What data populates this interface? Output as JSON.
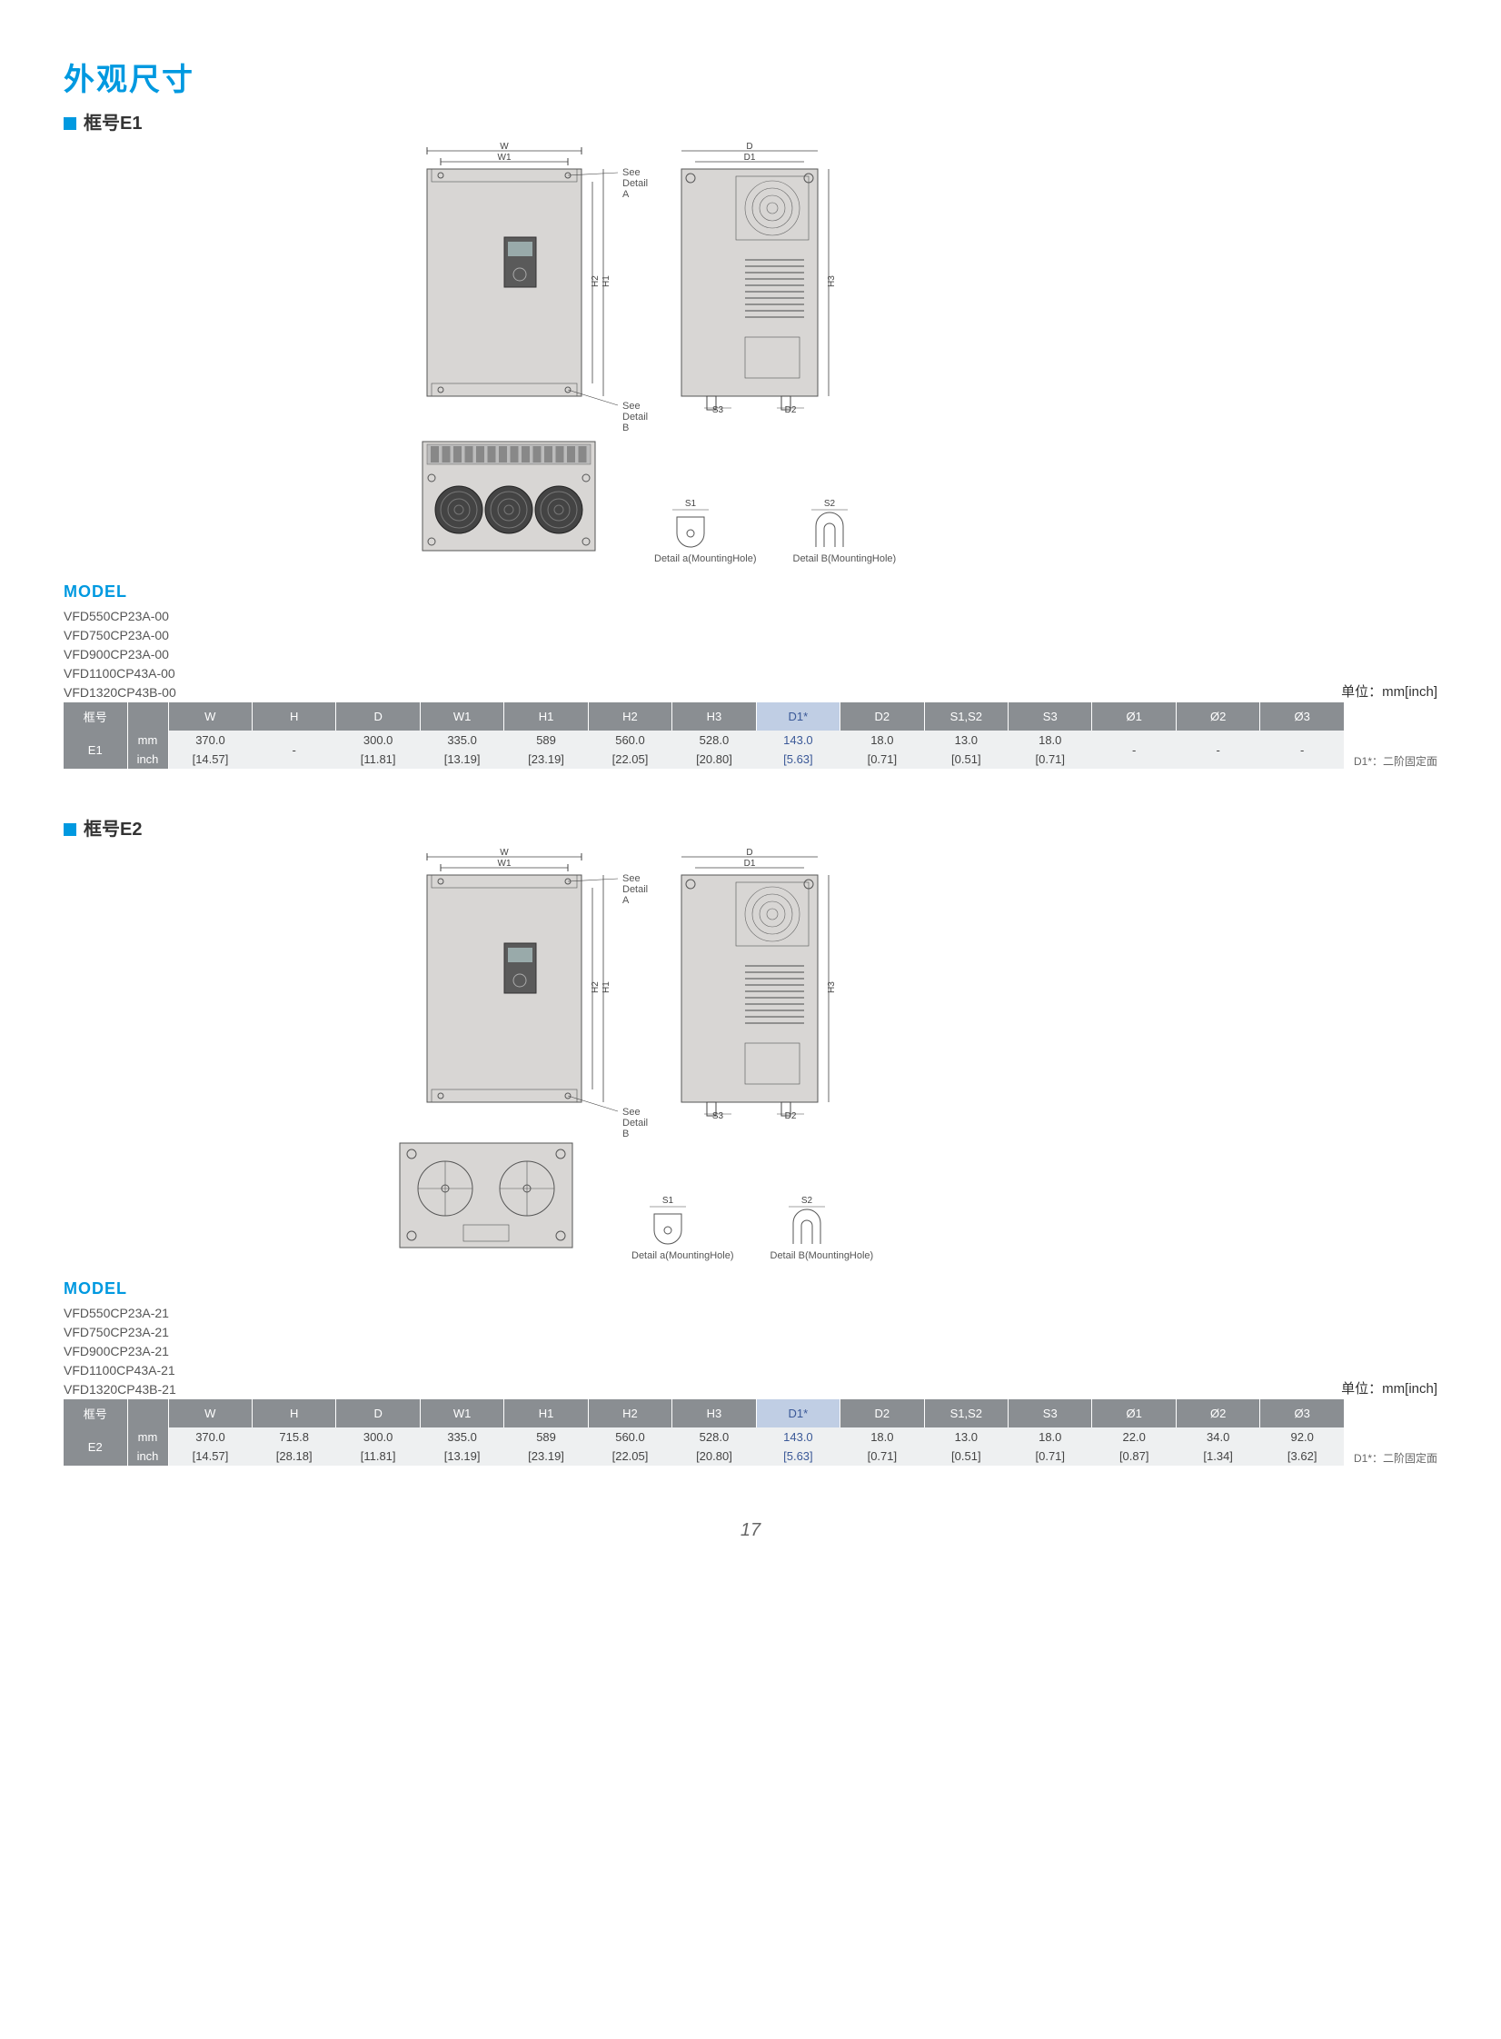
{
  "page": {
    "title": "外观尺寸",
    "number": "17"
  },
  "unit_label": "单位：mm[inch]",
  "footnote": "D1*：二阶固定面",
  "detail_labels": {
    "see_a": "See Detail A",
    "see_b": "See Detail B",
    "detail_a": "Detail a(MountingHole)",
    "detail_b": "Detail B(MountingHole)",
    "s1": "S1",
    "s2": "S2",
    "s3": "S3",
    "d2": "D2",
    "w": "W",
    "w1": "W1",
    "d": "D",
    "d1": "D1",
    "h": "H",
    "h1": "H1",
    "h2": "H2",
    "h3": "H3"
  },
  "sections": [
    {
      "frame_label": "框号E1",
      "model_heading": "MODEL",
      "models": [
        "VFD550CP23A-00",
        "VFD750CP23A-00",
        "VFD900CP23A-00",
        "VFD1100CP43A-00",
        "VFD1320CP43B-00"
      ],
      "table": {
        "header_label": "框号",
        "columns": [
          "W",
          "H",
          "D",
          "W1",
          "H1",
          "H2",
          "H3",
          "D1*",
          "D2",
          "S1,S2",
          "S3",
          "Ø1",
          "Ø2",
          "Ø3"
        ],
        "frame_id": "E1",
        "row_units": [
          "mm",
          "inch"
        ],
        "values_mm": [
          "370.0",
          "-",
          "300.0",
          "335.0",
          "589",
          "560.0",
          "528.0",
          "143.0",
          "18.0",
          "13.0",
          "18.0",
          "-",
          "-",
          "-"
        ],
        "values_inch": [
          "[14.57]",
          "",
          "[11.81]",
          "[13.19]",
          "[23.19]",
          "[22.05]",
          "[20.80]",
          "[5.63]",
          "[0.71]",
          "[0.51]",
          "[0.71]",
          "",
          "",
          ""
        ]
      }
    },
    {
      "frame_label": "框号E2",
      "model_heading": "MODEL",
      "models": [
        "VFD550CP23A-21",
        "VFD750CP23A-21",
        "VFD900CP23A-21",
        "VFD1100CP43A-21",
        "VFD1320CP43B-21"
      ],
      "table": {
        "header_label": "框号",
        "columns": [
          "W",
          "H",
          "D",
          "W1",
          "H1",
          "H2",
          "H3",
          "D1*",
          "D2",
          "S1,S2",
          "S3",
          "Ø1",
          "Ø2",
          "Ø3"
        ],
        "frame_id": "E2",
        "row_units": [
          "mm",
          "inch"
        ],
        "values_mm": [
          "370.0",
          "715.8",
          "300.0",
          "335.0",
          "589",
          "560.0",
          "528.0",
          "143.0",
          "18.0",
          "13.0",
          "18.0",
          "22.0",
          "34.0",
          "92.0"
        ],
        "values_inch": [
          "[14.57]",
          "[28.18]",
          "[11.81]",
          "[13.19]",
          "[23.19]",
          "[22.05]",
          "[20.80]",
          "[5.63]",
          "[0.71]",
          "[0.51]",
          "[0.71]",
          "[0.87]",
          "[1.34]",
          "[3.62]"
        ]
      }
    }
  ],
  "colors": {
    "accent": "#0099e0",
    "table_header_bg": "#8a8e92",
    "row_stripe": "#eef0f1",
    "d1_header_bg": "#c0cee4",
    "d1_text": "#3b5998",
    "drawing_fill": "#d8d6d4",
    "drawing_stroke": "#555"
  }
}
